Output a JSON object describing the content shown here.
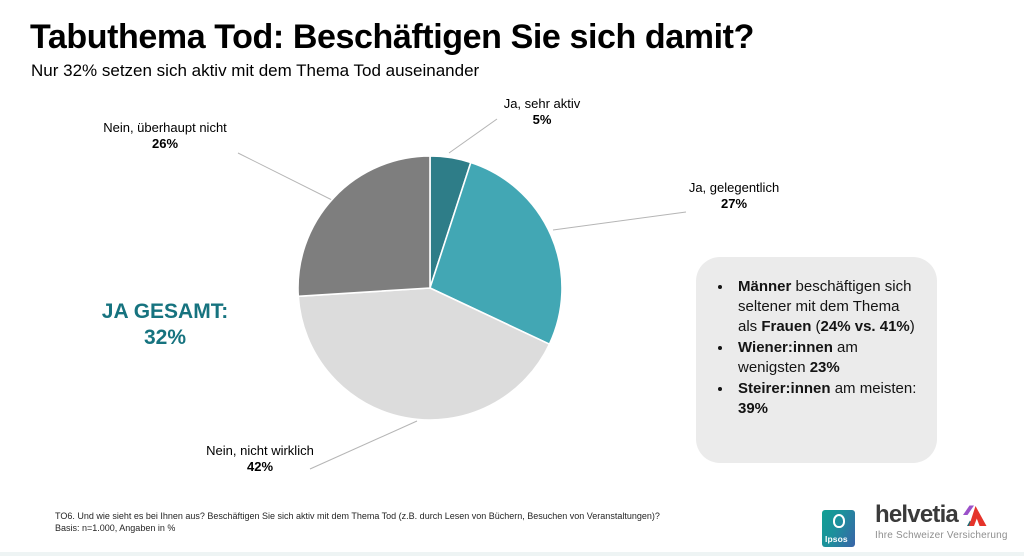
{
  "header": {
    "title": "Tabuthema Tod: Beschäftigen Sie sich damit?",
    "subtitle": "Nur 32% setzen sich aktiv mit dem Thema Tod auseinander"
  },
  "chart_data": {
    "type": "pie",
    "title": "Tabuthema Tod: Beschäftigen Sie sich damit?",
    "categories": [
      "Ja, sehr aktiv",
      "Ja, gelegentlich",
      "Nein, nicht wirklich",
      "Nein, überhaupt nicht"
    ],
    "values": [
      5,
      27,
      42,
      26
    ],
    "colors": [
      "#2e7d88",
      "#42a7b4",
      "#dcdcdc",
      "#7e7e7e"
    ],
    "start_angle_deg": 0,
    "direction": "clockwise",
    "unit": "%",
    "annotation": "JA GESAMT: 32%",
    "legend_position": "callout-labels"
  },
  "pie_labels": [
    {
      "name": "Ja, sehr aktiv",
      "pct": "5%"
    },
    {
      "name": "Ja, gelegentlich",
      "pct": "27%"
    },
    {
      "name": "Nein, nicht wirklich",
      "pct": "42%"
    },
    {
      "name": "Nein, überhaupt nicht",
      "pct": "26%"
    }
  ],
  "annotation": {
    "line1": "JA GESAMT:",
    "line2": "32%",
    "color": "#16737f"
  },
  "info_box": {
    "bullets": [
      "**Männer** beschäftigen sich seltener mit dem Thema als **Frauen** (**24% vs. 41%**)",
      "**Wiener:innen** am wenigsten **23%**",
      "**Steirer:innen** am meisten: **39%**"
    ]
  },
  "footer": {
    "line1": "TO6. Und wie sieht es bei Ihnen aus? Beschäftigen Sie sich aktiv mit dem Thema Tod (z.B. durch Lesen von Büchern, Besuchen von Veranstaltungen)?",
    "line2": "Basis: n=1.000, Angaben in %"
  },
  "logos": {
    "ipsos": {
      "label": "Ipsos"
    },
    "helvetia": {
      "name": "helvetia",
      "tagline": "Ihre Schweizer Versicherung"
    }
  },
  "colors": {
    "accent_teal": "#16737f",
    "info_box_bg": "#ebebeb",
    "leader_line": "#b5b5b5",
    "helvetia_red": "#e5332a",
    "helvetia_purple": "#9b51c9",
    "ipsos_teal": "#11a093",
    "ipsos_blue": "#3a63a8"
  }
}
